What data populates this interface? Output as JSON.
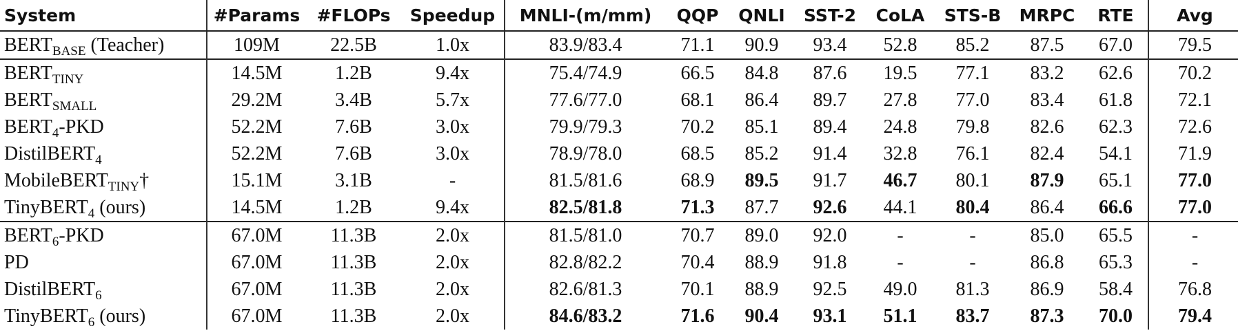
{
  "table": {
    "header": [
      "System",
      "#Params",
      "#FLOPs",
      "Speedup",
      "MNLI-(m/mm)",
      "QQP",
      "QNLI",
      "SST-2",
      "CoLA",
      "STS-B",
      "MRPC",
      "RTE",
      "Avg"
    ],
    "groups": [
      {
        "rows": [
          {
            "system": {
              "main": "BERT",
              "sub": "BASE",
              "suffix": " (Teacher)"
            },
            "cells": [
              "109M",
              "22.5B",
              "1.0x",
              "83.9/83.4",
              "71.1",
              "90.9",
              "93.4",
              "52.8",
              "85.2",
              "87.5",
              "67.0",
              "79.5"
            ]
          }
        ]
      },
      {
        "rows": [
          {
            "system": {
              "main": "BERT",
              "sub": "TINY"
            },
            "cells": [
              "14.5M",
              "1.2B",
              "9.4x",
              "75.4/74.9",
              "66.5",
              "84.8",
              "87.6",
              "19.5",
              "77.1",
              "83.2",
              "62.6",
              "70.2"
            ]
          },
          {
            "system": {
              "main": "BERT",
              "sub": "SMALL"
            },
            "cells": [
              "29.2M",
              "3.4B",
              "5.7x",
              "77.6/77.0",
              "68.1",
              "86.4",
              "89.7",
              "27.8",
              "77.0",
              "83.4",
              "61.8",
              "72.1"
            ]
          },
          {
            "system": {
              "main": "BERT",
              "sub": "4",
              "suffix": "-PKD"
            },
            "cells": [
              "52.2M",
              "7.6B",
              "3.0x",
              "79.9/79.3",
              "70.2",
              "85.1",
              "89.4",
              "24.8",
              "79.8",
              "82.6",
              "62.3",
              "72.6"
            ]
          },
          {
            "system": {
              "main": "DistilBERT",
              "sub": "4"
            },
            "cells": [
              "52.2M",
              "7.6B",
              "3.0x",
              "78.9/78.0",
              "68.5",
              "85.2",
              "91.4",
              "32.8",
              "76.1",
              "82.4",
              "54.1",
              "71.9"
            ]
          },
          {
            "system": {
              "main": "MobileBERT",
              "sub": "TINY",
              "suffix": "†"
            },
            "cells": [
              "15.1M",
              "3.1B",
              "-",
              "81.5/81.6",
              "68.9",
              "89.5",
              "91.7",
              "46.7",
              "80.1",
              "87.9",
              "65.1",
              "77.0"
            ],
            "bold": [
              5,
              7,
              9,
              11
            ]
          },
          {
            "system": {
              "main": "TinyBERT",
              "sub": "4",
              "suffix": " (ours)"
            },
            "cells": [
              "14.5M",
              "1.2B",
              "9.4x",
              "82.5/81.8",
              "71.3",
              "87.7",
              "92.6",
              "44.1",
              "80.4",
              "86.4",
              "66.6",
              "77.0"
            ],
            "bold": [
              3,
              4,
              6,
              8,
              10,
              11
            ]
          }
        ]
      },
      {
        "rows": [
          {
            "system": {
              "main": "BERT",
              "sub": "6",
              "suffix": "-PKD"
            },
            "cells": [
              "67.0M",
              "11.3B",
              "2.0x",
              "81.5/81.0",
              "70.7",
              "89.0",
              "92.0",
              "-",
              "-",
              "85.0",
              "65.5",
              "-"
            ]
          },
          {
            "system": {
              "main": "PD"
            },
            "cells": [
              "67.0M",
              "11.3B",
              "2.0x",
              "82.8/82.2",
              "70.4",
              "88.9",
              "91.8",
              "-",
              "-",
              "86.8",
              "65.3",
              "-"
            ]
          },
          {
            "system": {
              "main": "DistilBERT",
              "sub": "6"
            },
            "cells": [
              "67.0M",
              "11.3B",
              "2.0x",
              "82.6/81.3",
              "70.1",
              "88.9",
              "92.5",
              "49.0",
              "81.3",
              "86.9",
              "58.4",
              "76.8"
            ]
          },
          {
            "system": {
              "main": "TinyBERT",
              "sub": "6",
              "suffix": " (ours)"
            },
            "cells": [
              "67.0M",
              "11.3B",
              "2.0x",
              "84.6/83.2",
              "71.6",
              "90.4",
              "93.1",
              "51.1",
              "83.7",
              "87.3",
              "70.0",
              "79.4"
            ],
            "bold": [
              3,
              4,
              5,
              6,
              7,
              8,
              9,
              10,
              11
            ]
          }
        ]
      }
    ]
  }
}
